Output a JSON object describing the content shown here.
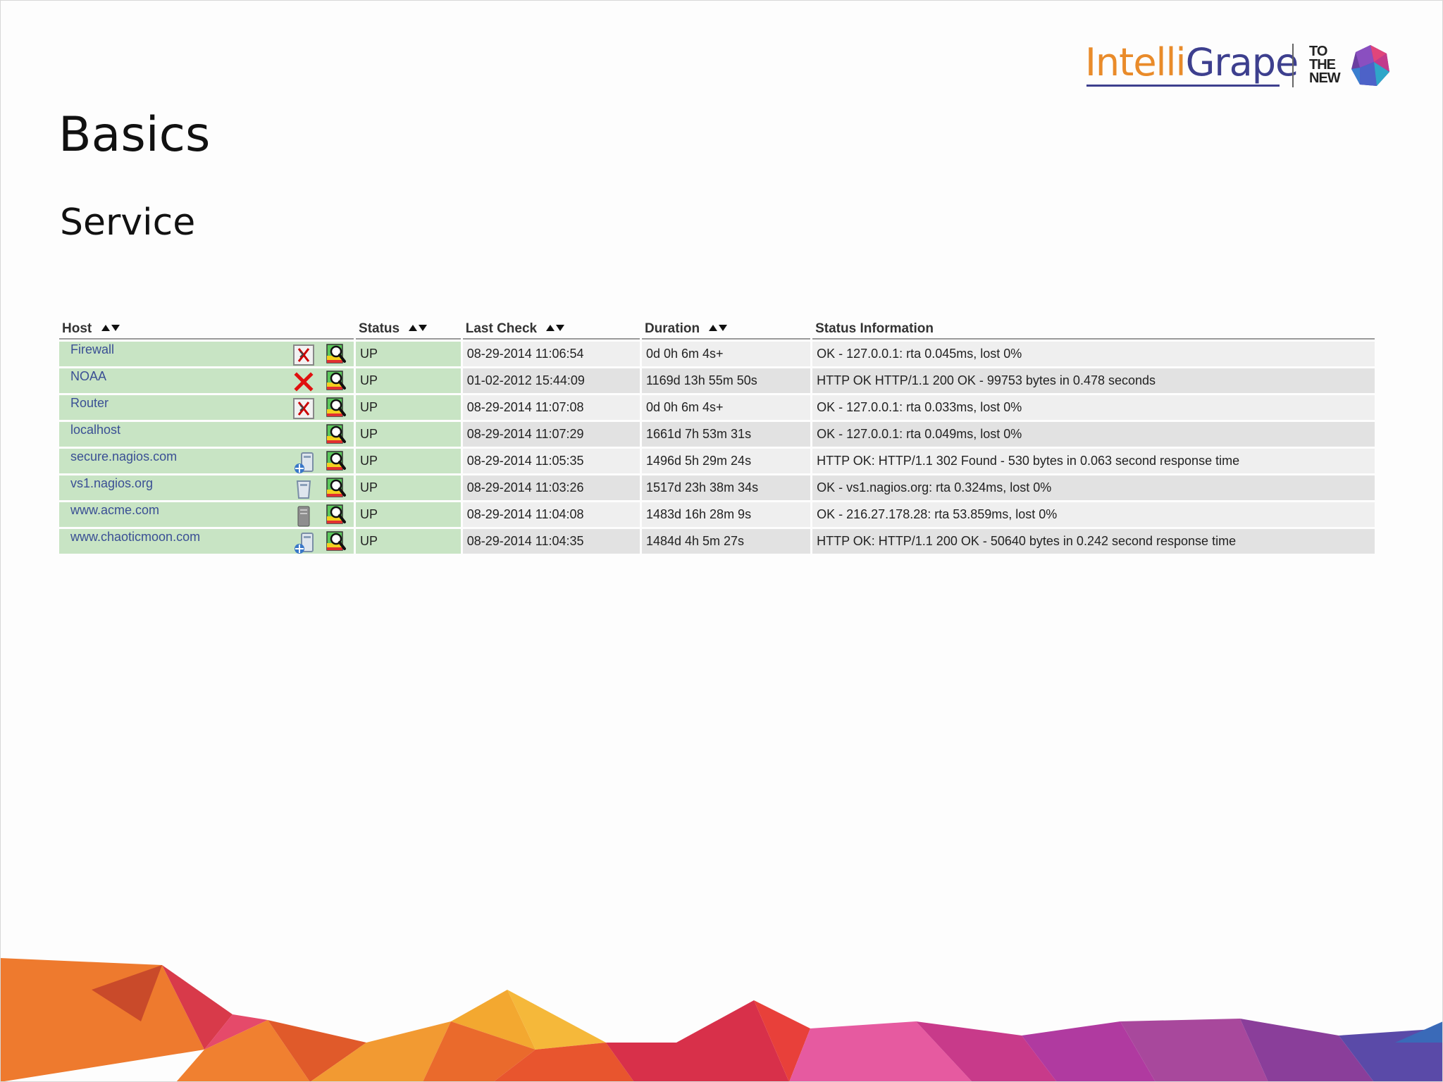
{
  "slide": {
    "title": "Basics",
    "subtitle": "Service"
  },
  "logo": {
    "brand_part1": "Intelli",
    "brand_part2": "Grape",
    "partner_line1": "TO",
    "partner_line2": "THE",
    "partner_line3": "NEW"
  },
  "table": {
    "headers": {
      "host": "Host",
      "status": "Status",
      "last_check": "Last Check",
      "duration": "Duration",
      "status_information": "Status Information"
    },
    "rows": [
      {
        "host": "Firewall",
        "icon": "disabled-notifications-icon",
        "status": "UP",
        "last_check": "08-29-2014 11:06:54",
        "duration": "0d 0h 6m 4s+",
        "info": "OK - 127.0.0.1: rta 0.045ms, lost 0%"
      },
      {
        "host": "NOAA",
        "icon": "red-x-icon",
        "status": "UP",
        "last_check": "01-02-2012 15:44:09",
        "duration": "1169d 13h 55m 50s",
        "info": "HTTP OK HTTP/1.1 200 OK - 99753 bytes in 0.478 seconds"
      },
      {
        "host": "Router",
        "icon": "disabled-notifications-icon",
        "status": "UP",
        "last_check": "08-29-2014 11:07:08",
        "duration": "0d 0h 6m 4s+",
        "info": "OK - 127.0.0.1: rta 0.033ms, lost 0%"
      },
      {
        "host": "localhost",
        "icon": "",
        "status": "UP",
        "last_check": "08-29-2014 11:07:29",
        "duration": "1661d 7h 53m 31s",
        "info": "OK - 127.0.0.1: rta 0.049ms, lost 0%"
      },
      {
        "host": "secure.nagios.com",
        "icon": "server-network-icon",
        "status": "UP",
        "last_check": "08-29-2014 11:05:35",
        "duration": "1496d 5h 29m 24s",
        "info": "HTTP OK: HTTP/1.1 302 Found - 530 bytes in 0.063 second response time"
      },
      {
        "host": "vs1.nagios.org",
        "icon": "server-icon",
        "status": "UP",
        "last_check": "08-29-2014 11:03:26",
        "duration": "1517d 23h 38m 34s",
        "info": "OK - vs1.nagios.org: rta 0.324ms, lost 0%"
      },
      {
        "host": "www.acme.com",
        "icon": "tower-server-icon",
        "status": "UP",
        "last_check": "08-29-2014 11:04:08",
        "duration": "1483d 16h 28m 9s",
        "info": "OK - 216.27.178.28: rta 53.859ms, lost 0%"
      },
      {
        "host": "www.chaoticmoon.com",
        "icon": "server-network-icon",
        "status": "UP",
        "last_check": "08-29-2014 11:04:35",
        "duration": "1484d 4h 5m 27s",
        "info": "HTTP OK: HTTP/1.1 200 OK - 50640 bytes in 0.242 second response time"
      }
    ]
  },
  "colors": {
    "host_cell_bg": "#c8e4c4",
    "link": "#3a4f94",
    "info_row_odd": "#efefef",
    "info_row_even": "#e2e2e2",
    "brand_orange": "#e98b2a",
    "brand_indigo": "#3d3f8e"
  }
}
